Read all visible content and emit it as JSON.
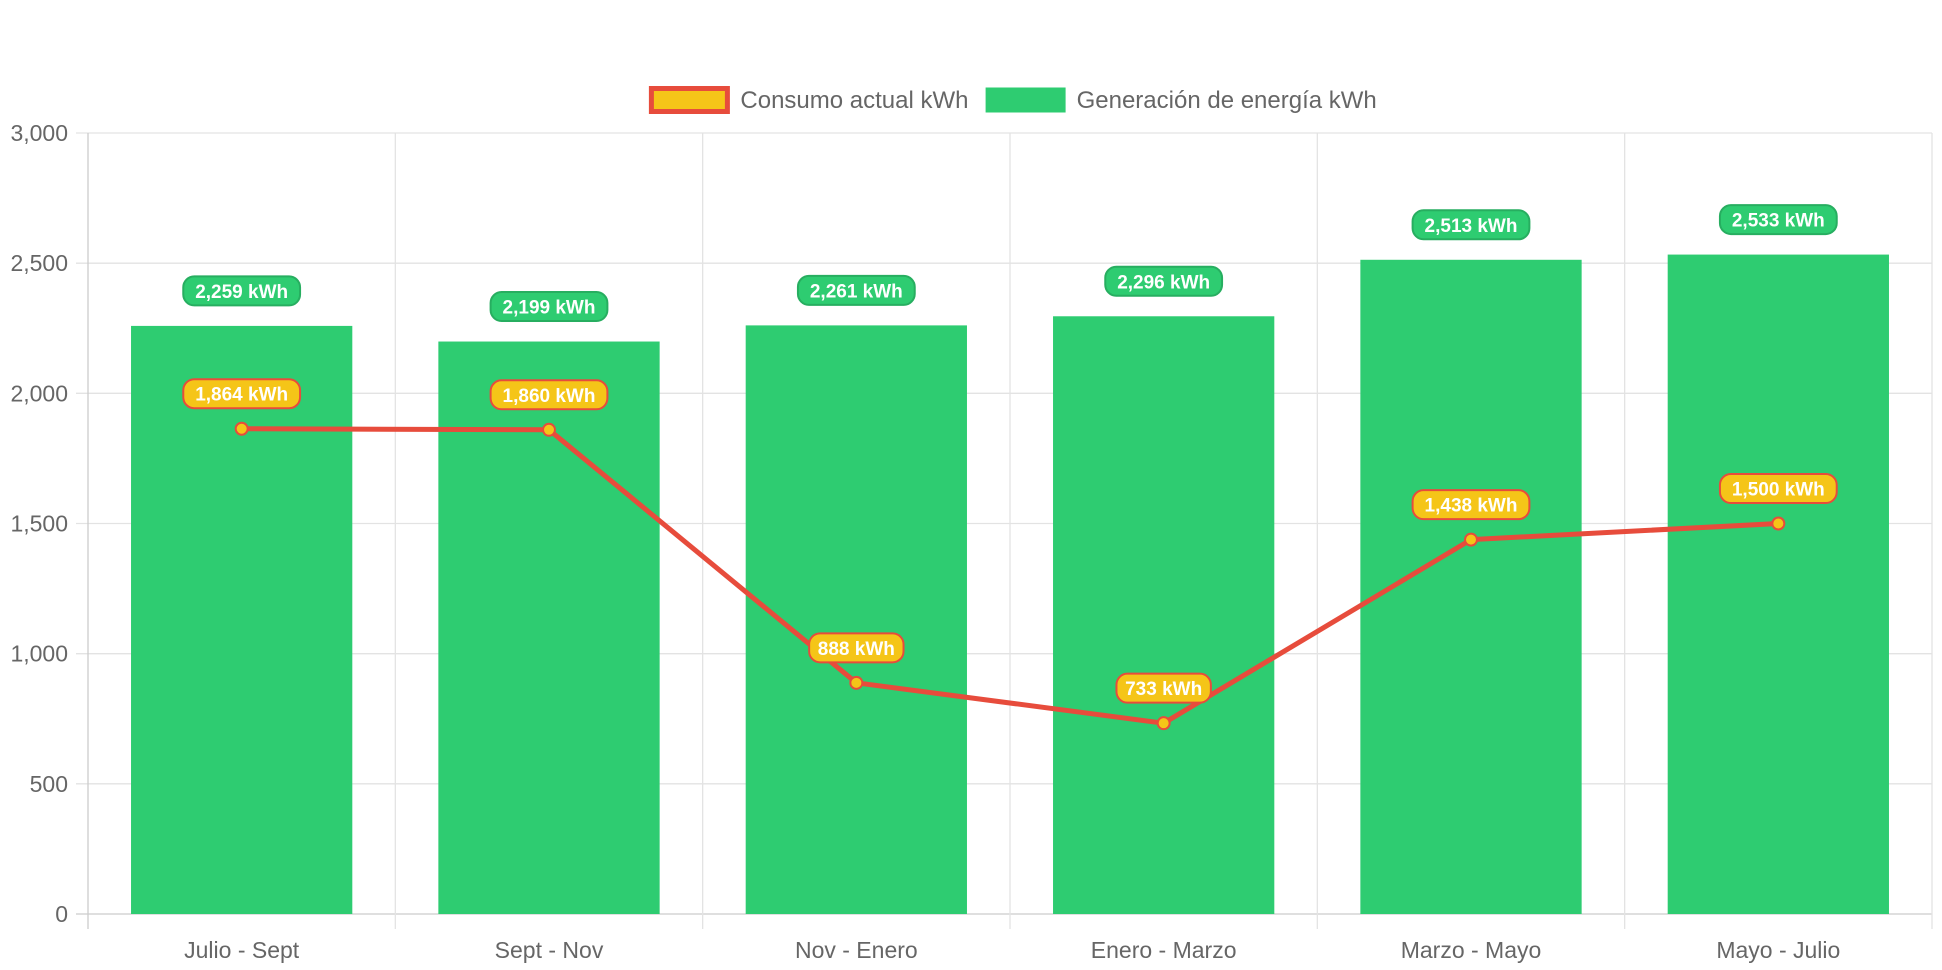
{
  "chart_data": {
    "type": "bar",
    "categories": [
      "Julio - Sept",
      "Sept - Nov",
      "Nov - Enero",
      "Enero - Marzo",
      "Marzo - Mayo",
      "Mayo - Julio"
    ],
    "series": [
      {
        "name": "Generación de energía kWh",
        "type": "bar",
        "values": [
          2259,
          2199,
          2261,
          2296,
          2513,
          2533
        ],
        "labels": [
          "2,259 kWh",
          "2,199 kWh",
          "2,261 kWh",
          "2,296 kWh",
          "2,513 kWh",
          "2,533 kWh"
        ],
        "color": "#2ecc71",
        "label_border_color": "#27ae60"
      },
      {
        "name": "Consumo actual kWh",
        "type": "line",
        "values": [
          1864,
          1860,
          888,
          733,
          1438,
          1500
        ],
        "labels": [
          "1,864 kWh",
          "1,860 kWh",
          "888 kWh",
          "733 kWh",
          "1,438 kWh",
          "1,500 kWh"
        ],
        "color": "#e74c3c",
        "fill_color": "#f5c518"
      }
    ],
    "y_ticks": [
      "0",
      "500",
      "1,000",
      "1,500",
      "2,000",
      "2,500",
      "3,000"
    ],
    "ylim": [
      0,
      3000
    ],
    "grid": true,
    "legend_position": "top",
    "legend_order": [
      "Consumo actual kWh",
      "Generación de energía kWh"
    ]
  }
}
